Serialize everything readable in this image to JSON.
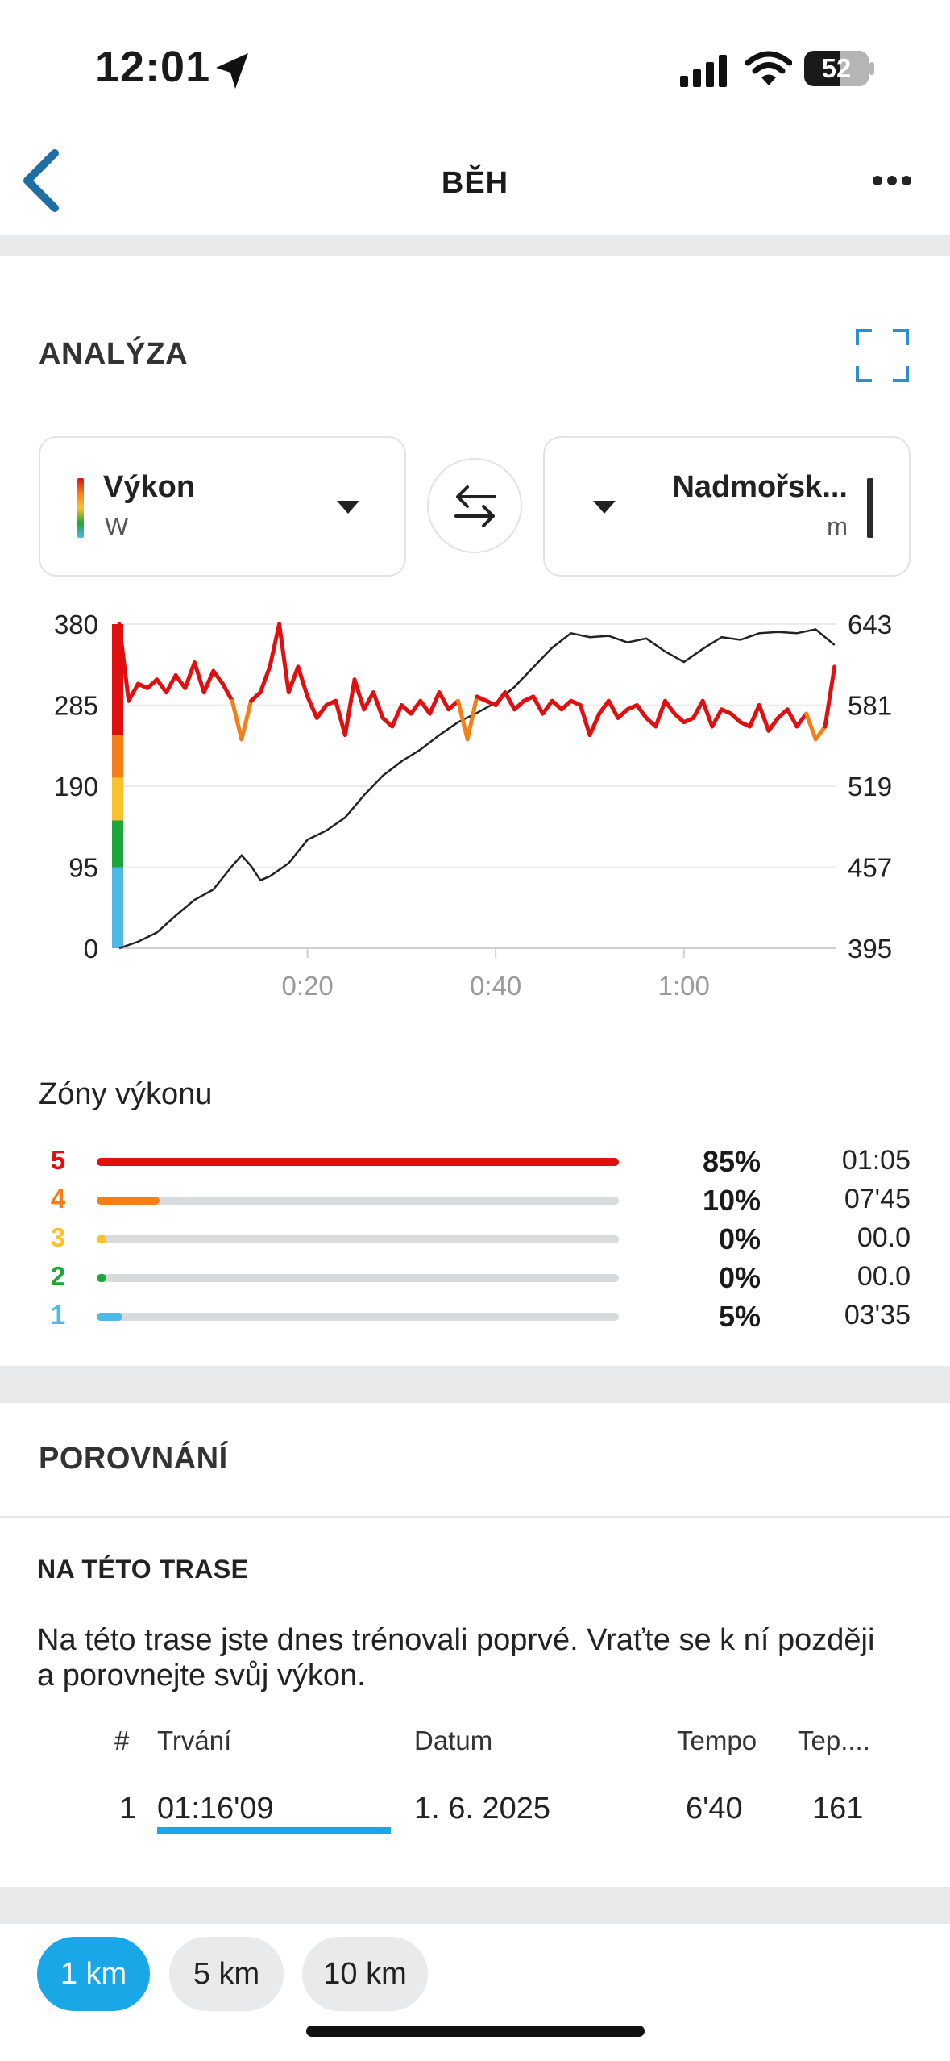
{
  "status_bar": {
    "time": "12:01",
    "battery": "52"
  },
  "nav": {
    "title": "BĚH"
  },
  "analysis": {
    "title": "ANALÝZA",
    "left_selector": {
      "label": "Výkon",
      "unit": "W"
    },
    "right_selector": {
      "label": "Nadmořsk...",
      "unit": "m"
    },
    "zone_colors": [
      "#e01010",
      "#f57f17",
      "#fbc02d",
      "#1fa63a",
      "#4fb8e6"
    ]
  },
  "chart_data": {
    "type": "line",
    "x_ticks": [
      "0:20",
      "0:40",
      "1:00"
    ],
    "x_range_minutes": [
      0,
      76.2
    ],
    "y_left": {
      "ticks": [
        "380",
        "285",
        "190",
        "95",
        "0"
      ],
      "range": [
        0,
        380
      ],
      "unit": "W"
    },
    "y_right": {
      "ticks": [
        "643",
        "581",
        "519",
        "457",
        "395"
      ],
      "range": [
        395,
        643
      ],
      "unit": "m"
    },
    "series": [
      {
        "name": "Výkon",
        "axis": "left",
        "x": [
          0,
          1,
          2,
          3,
          4,
          5,
          6,
          7,
          8,
          9,
          10,
          11,
          12,
          13,
          14,
          15,
          16,
          17,
          18,
          19,
          20,
          21,
          22,
          23,
          24,
          25,
          26,
          27,
          28,
          29,
          30,
          31,
          32,
          33,
          34,
          35,
          36,
          37,
          38,
          39,
          40,
          41,
          42,
          43,
          44,
          45,
          46,
          47,
          48,
          49,
          50,
          51,
          52,
          53,
          54,
          55,
          56,
          57,
          58,
          59,
          60,
          61,
          62,
          63,
          64,
          65,
          66,
          67,
          68,
          69,
          70,
          71,
          72,
          73,
          74,
          75,
          76
        ],
        "values": [
          380,
          290,
          310,
          305,
          315,
          300,
          320,
          305,
          335,
          300,
          325,
          310,
          290,
          245,
          290,
          300,
          330,
          380,
          300,
          330,
          295,
          270,
          285,
          290,
          250,
          315,
          280,
          300,
          270,
          260,
          285,
          275,
          290,
          275,
          300,
          280,
          290,
          245,
          295,
          290,
          285,
          300,
          280,
          290,
          295,
          275,
          290,
          280,
          290,
          285,
          250,
          275,
          290,
          270,
          280,
          285,
          270,
          260,
          290,
          275,
          265,
          270,
          290,
          260,
          280,
          275,
          265,
          260,
          285,
          255,
          270,
          280,
          260,
          275,
          245,
          260,
          330
        ],
        "style": "zone-colored"
      },
      {
        "name": "Nadmořská výška",
        "axis": "right",
        "x": [
          0,
          2,
          4,
          6,
          8,
          10,
          12,
          13,
          14,
          15,
          16,
          18,
          20,
          22,
          24,
          26,
          28,
          30,
          32,
          34,
          36,
          38,
          40,
          42,
          44,
          46,
          48,
          50,
          52,
          54,
          56,
          58,
          60,
          62,
          64,
          66,
          68,
          70,
          72,
          74,
          76
        ],
        "values": [
          395,
          400,
          407,
          420,
          432,
          440,
          458,
          466,
          458,
          447,
          450,
          460,
          478,
          485,
          495,
          512,
          527,
          538,
          547,
          558,
          568,
          575,
          583,
          595,
          610,
          625,
          636,
          633,
          634,
          629,
          632,
          622,
          614,
          624,
          633,
          631,
          636,
          637,
          636,
          639,
          627
        ],
        "style": "black-line"
      }
    ]
  },
  "zones": {
    "title": "Zóny výkonu",
    "rows": [
      {
        "num": "5",
        "pct": "85%",
        "time": "01:05",
        "fraction": 1.0,
        "color": "#e01010"
      },
      {
        "num": "4",
        "pct": "10%",
        "time": "07'45",
        "fraction": 0.12,
        "color": "#f57f17"
      },
      {
        "num": "3",
        "pct": "0%",
        "time": "00.0",
        "fraction": 0.0,
        "color": "#fbc02d"
      },
      {
        "num": "2",
        "pct": "0%",
        "time": "00.0",
        "fraction": 0.0,
        "color": "#1fa63a"
      },
      {
        "num": "1",
        "pct": "5%",
        "time": "03'35",
        "fraction": 0.05,
        "color": "#4fb8e6"
      }
    ]
  },
  "comparison": {
    "title": "POROVNÁNÍ",
    "subtitle": "NA TÉTO TRASE",
    "description": "Na této trase jste dnes trénovali poprvé. Vraťte se k ní později a porovnejte svůj výkon.",
    "headers": {
      "num": "#",
      "duration": "Trvání",
      "date": "Datum",
      "pace": "Tempo",
      "temp": "Tep...."
    },
    "rows": [
      {
        "num": "1",
        "duration": "01:16'09",
        "date": "1. 6. 2025",
        "pace": "6'40",
        "temp": "161"
      }
    ]
  },
  "splits": {
    "chips": [
      "1 km",
      "5 km",
      "10 km"
    ],
    "selected": "1 km"
  }
}
